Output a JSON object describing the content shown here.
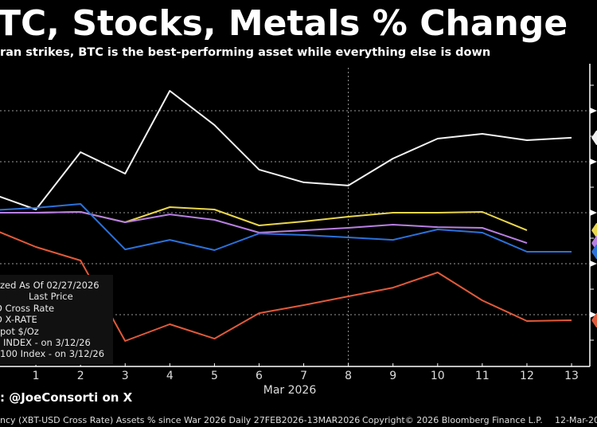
{
  "header": {
    "title": "TC, Stocks, Metals % Change",
    "subtitle": "ran strikes, BTC is the best-performing asset while everything else is down"
  },
  "legend": {
    "lines": [
      "zed As Of 02/27/2026",
      "Last Price",
      "D Cross Rate",
      "D X-RATE",
      "pot $/Oz",
      "INDEX -  on 3/12/26",
      "100 Index -  on 3/12/26"
    ]
  },
  "footer": {
    "source": ": @JoeConsorti on X",
    "description": "ncy (XBT-USD Cross Rate) Assets % since War 2026 Daily 27FEB2026-13MAR2026",
    "copyright": "Copyright© 2026 Bloomberg Finance L.P.",
    "date": "12-Mar-20"
  },
  "chart_data": {
    "type": "line",
    "title": "TC, Stocks, Metals % Change",
    "xlabel": "Mar 2026",
    "ylabel": "",
    "x": [
      "Feb 28",
      "Mar 1",
      "Mar 2",
      "Mar 3",
      "Mar 4",
      "Mar 5",
      "Mar 6",
      "Mar 7",
      "Mar 8",
      "Mar 9",
      "Mar 10",
      "Mar 11",
      "Mar 12",
      "Mar 13"
    ],
    "x_tick_labels": [
      "1",
      "2",
      "3",
      "4",
      "5",
      "6",
      "7",
      "8",
      "9",
      "10",
      "11",
      "12",
      "13"
    ],
    "ylim": [
      -12,
      11.5
    ],
    "y_gridlines": [
      8,
      4,
      0,
      -4,
      -8
    ],
    "grid": "horizontal dotted",
    "vertical_marker": "Mar 8",
    "series": [
      {
        "color": "#f2f2f2",
        "values": [
          1.5,
          0.25,
          4.75,
          3.06,
          9.56,
          6.88,
          3.38,
          2.38,
          2.13,
          4.25,
          5.81,
          6.19,
          5.69,
          5.88
        ]
      },
      {
        "color": "#e9d64b",
        "values": [
          0,
          0,
          0.06,
          -0.75,
          0.44,
          0.25,
          -1.0,
          -0.69,
          -0.31,
          0,
          0,
          0.06,
          -1.38,
          null
        ]
      },
      {
        "color": "#b87fe3",
        "values": [
          0,
          0,
          0.06,
          -0.75,
          -0.13,
          -0.56,
          -1.56,
          -1.38,
          -1.19,
          -0.94,
          -1.13,
          -1.19,
          -2.38,
          null
        ]
      },
      {
        "color": "#2b71da",
        "values": [
          0.19,
          0.38,
          0.69,
          -2.88,
          -2.13,
          -2.94,
          -1.63,
          -1.75,
          -1.94,
          -2.13,
          -1.31,
          -1.56,
          -3.06,
          -3.06
        ]
      },
      {
        "color": "#e15a3a",
        "values": [
          -1.25,
          -2.69,
          -3.75,
          -10.06,
          -8.75,
          -9.88,
          -7.88,
          -7.25,
          -6.56,
          -5.88,
          -4.69,
          -6.88,
          -8.5,
          -8.44
        ]
      }
    ]
  }
}
